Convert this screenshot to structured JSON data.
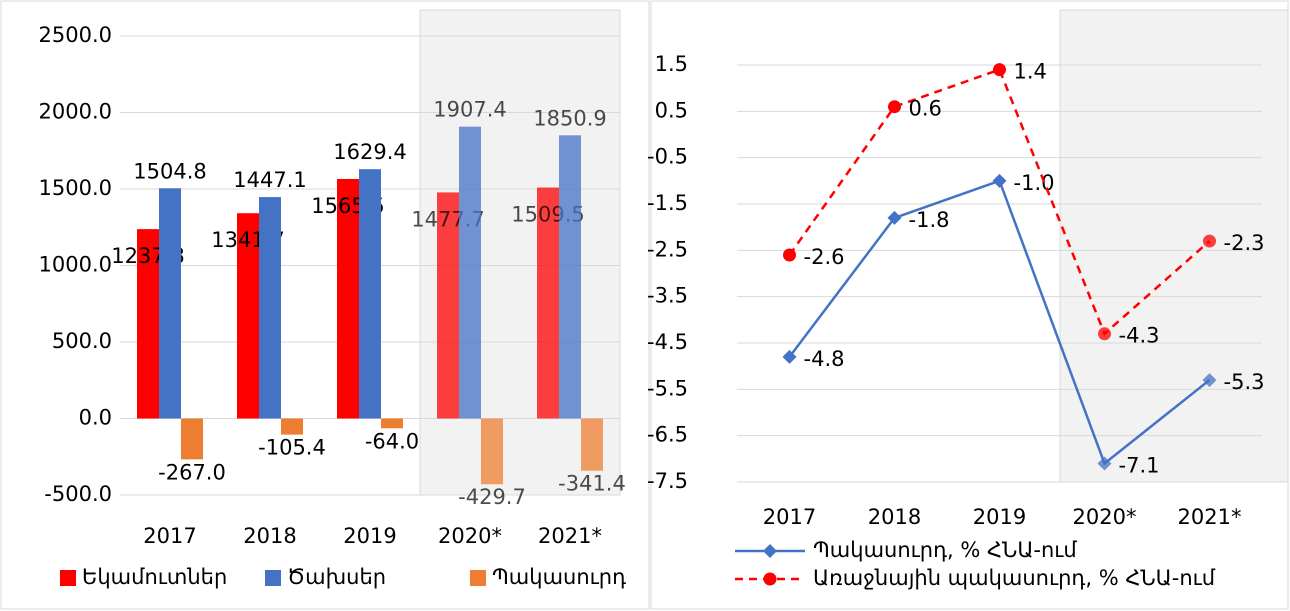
{
  "chart_data": [
    {
      "type": "bar",
      "categories": [
        "2017",
        "2018",
        "2019",
        "2020*",
        "2021*"
      ],
      "series": [
        {
          "name": "Եկամուտներ",
          "color": "#ff0000",
          "values": [
            1237.8,
            1341.7,
            1565.5,
            1477.7,
            1509.5
          ],
          "value_labels": [
            "1237.8",
            "1341.7",
            "1565.5",
            "1477.7",
            "1509.5"
          ]
        },
        {
          "name": "Ծախսեր",
          "color": "#4472c4",
          "values": [
            1504.8,
            1447.1,
            1629.4,
            1907.4,
            1850.9
          ],
          "value_labels": [
            "1504.8",
            "1447.1",
            "1629.4",
            "1907.4",
            "1850.9"
          ]
        },
        {
          "name": "Պակասուրդ",
          "color": "#ed7d31",
          "values": [
            -267.0,
            -105.4,
            -64.0,
            -429.7,
            -341.4
          ],
          "value_labels": [
            "-267.0",
            "-105.4",
            "-64.0",
            "-429.7",
            "-341.4"
          ]
        }
      ],
      "ylim": [
        -500,
        2500
      ],
      "yticks": [
        {
          "value": -500,
          "label": "-500.0"
        },
        {
          "value": 0,
          "label": "0.0"
        },
        {
          "value": 500,
          "label": "500.0"
        },
        {
          "value": 1000,
          "label": "1000.0"
        },
        {
          "value": 1500,
          "label": "1500.0"
        },
        {
          "value": 2000,
          "label": "2000.0"
        },
        {
          "value": 2500,
          "label": "2500.0"
        }
      ],
      "grid": true,
      "legend": "bottom"
    },
    {
      "type": "line",
      "categories": [
        "2017",
        "2018",
        "2019",
        "2020*",
        "2021*"
      ],
      "series": [
        {
          "name": "Պակասուրդ, % ՀՆԱ-ում",
          "color": "#4472c4",
          "marker": "diamond",
          "dash": false,
          "values": [
            -4.8,
            -1.8,
            -1.0,
            -7.1,
            -5.3
          ],
          "value_labels": [
            "-4.8",
            "-1.8",
            "-1.0",
            "-7.1",
            "-5.3"
          ]
        },
        {
          "name": "Առաջնային պակասուրդ, % ՀՆԱ-ում",
          "color": "#ff0000",
          "marker": "circle",
          "dash": true,
          "values": [
            -2.6,
            0.6,
            1.4,
            -4.3,
            -2.3
          ],
          "value_labels": [
            "-2.6",
            "0.6",
            "1.4",
            "-4.3",
            "-2.3"
          ]
        }
      ],
      "ylim": [
        -7.5,
        1.5
      ],
      "yticks": [
        -7.5,
        -6.5,
        -5.5,
        -4.5,
        -3.5,
        -2.5,
        -1.5,
        -0.5,
        0.5,
        1.5
      ],
      "grid": true,
      "legend": "bottom"
    }
  ]
}
